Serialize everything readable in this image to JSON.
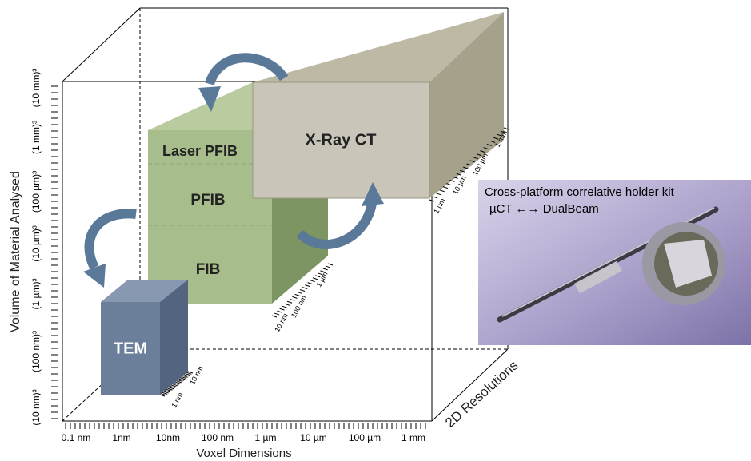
{
  "axes": {
    "y_label": "Volume of Material Analysed",
    "x_label": "Voxel Dimensions",
    "depth_label": "2D Resolutions",
    "y_ticks": [
      "(10 nm)³",
      "(100 nm)³",
      "(1 µm)³",
      "(10 µm)³",
      "(100 µm)³",
      "(1 mm)³",
      "(10 mm)³"
    ],
    "x_ticks": [
      "0.1 nm",
      "1nm",
      "10nm",
      "100 nm",
      "1 µm",
      "10 µm",
      "100 µm",
      "1 mm"
    ]
  },
  "blocks": [
    {
      "label": "TEM",
      "depth_ticks": [
        "1 nm",
        "10 nm"
      ]
    },
    {
      "label": "FIB",
      "depth_ticks": [
        "10 nm",
        "100 nm",
        "1 µm"
      ]
    },
    {
      "label": "PFIB"
    },
    {
      "label": "Laser PFIB"
    },
    {
      "label": "X-Ray CT",
      "depth_ticks": [
        "1 µm",
        "10 µm",
        "100 µm",
        "1 mm"
      ]
    }
  ],
  "photo": {
    "caption_lines": [
      "Cross-platform correlative holder kit",
      "µCT ←→ DualBeam"
    ]
  }
}
